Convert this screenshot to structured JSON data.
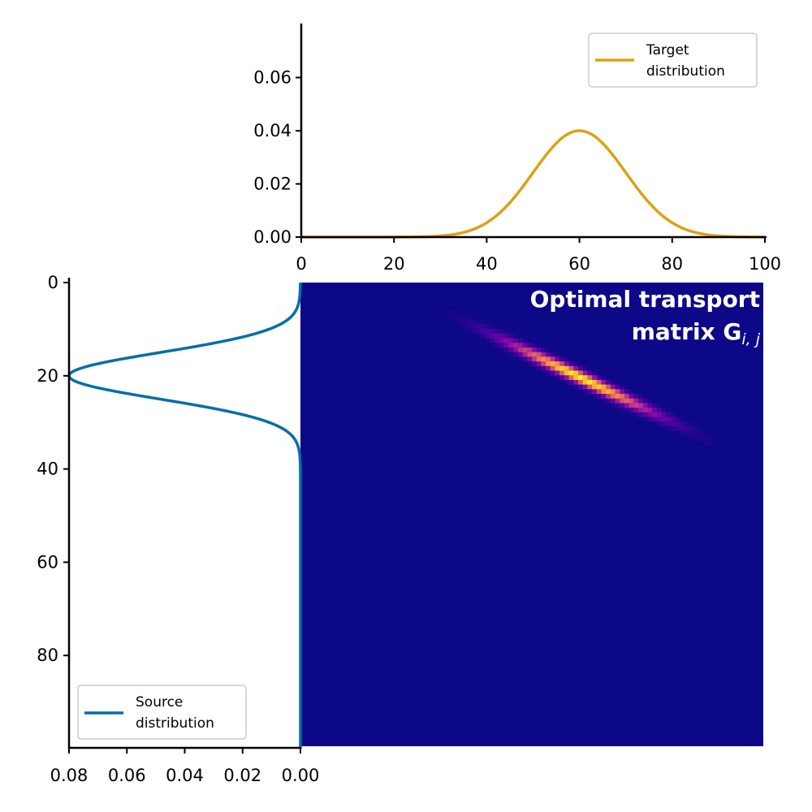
{
  "chart_data": [
    {
      "panel": "top",
      "type": "line",
      "xlim": [
        0,
        100
      ],
      "ylim": [
        0,
        0.08
      ],
      "xticks": [
        "0",
        "20",
        "40",
        "60",
        "80",
        "100"
      ],
      "yticks": [
        "0.00",
        "0.02",
        "0.04",
        "0.06"
      ],
      "legend": {
        "placement": "top-right",
        "line1": "Target",
        "line2": "distribution"
      },
      "series": [
        {
          "name": "Target distribution",
          "color": "#dba214",
          "distribution": "gaussian",
          "mean": 60,
          "std": 10,
          "peak": 0.04
        }
      ]
    },
    {
      "panel": "left",
      "type": "line",
      "orientation": "horizontal",
      "xlim": [
        0.08,
        0
      ],
      "ylim": [
        100,
        0
      ],
      "xticks": [
        "0.08",
        "0.06",
        "0.04",
        "0.02",
        "0.00"
      ],
      "yticks": [
        "0",
        "20",
        "40",
        "60",
        "80"
      ],
      "legend": {
        "placement": "bottom-left",
        "line1": "Source",
        "line2": "distribution"
      },
      "series": [
        {
          "name": "Source distribution",
          "color": "#006fa9",
          "distribution": "gaussian",
          "mean": 20,
          "std": 5,
          "peak": 0.08
        }
      ]
    },
    {
      "panel": "main",
      "type": "heatmap",
      "title_line1": "Optimal transport",
      "title_line2": "matrix G",
      "title_subscript": "i, j",
      "grid": [
        100,
        100
      ],
      "colormap": "plasma",
      "description_values": "mass concentrated along the line j ≈ 2i + 20, peaking near i = 20, j = 60",
      "peak": {
        "i": 20,
        "j": 60
      }
    }
  ]
}
